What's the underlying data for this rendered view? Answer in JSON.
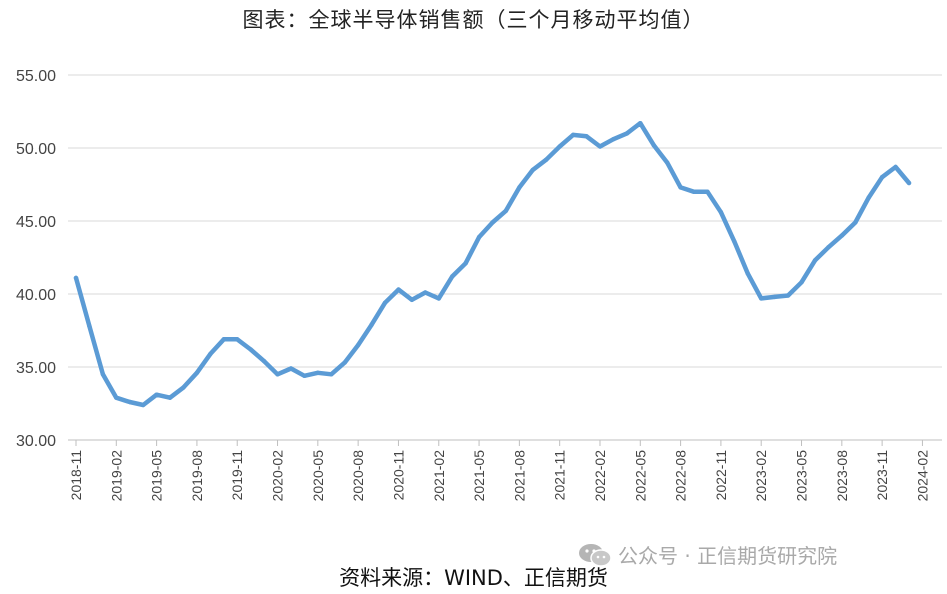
{
  "chart_data": {
    "type": "line",
    "title": "图表：全球半导体销售额（三个月移动平均值）",
    "xlabel": "",
    "ylabel": "",
    "ylim": [
      30,
      55
    ],
    "yticks": [
      "30.00",
      "35.00",
      "40.00",
      "45.00",
      "50.00",
      "55.00"
    ],
    "grid": true,
    "x_tick_labels": [
      "2018-11",
      "2019-02",
      "2019-05",
      "2019-08",
      "2019-11",
      "2020-02",
      "2020-05",
      "2020-08",
      "2020-11",
      "2021-02",
      "2021-05",
      "2021-08",
      "2021-11",
      "2022-02",
      "2022-05",
      "2022-08",
      "2022-11",
      "2023-02",
      "2023-05",
      "2023-08",
      "2023-11",
      "2024-02"
    ],
    "color": "#5b9bd5",
    "series": [
      {
        "x": [
          "2018-11",
          "2018-12",
          "2019-01",
          "2019-02",
          "2019-03",
          "2019-04",
          "2019-05",
          "2019-06",
          "2019-07",
          "2019-08",
          "2019-09",
          "2019-10",
          "2019-11",
          "2019-12",
          "2020-01",
          "2020-02",
          "2020-03",
          "2020-04",
          "2020-05",
          "2020-06",
          "2020-07",
          "2020-08",
          "2020-09",
          "2020-10",
          "2020-11",
          "2020-12",
          "2021-01",
          "2021-02",
          "2021-03",
          "2021-04",
          "2021-05",
          "2021-06",
          "2021-07",
          "2021-08",
          "2021-09",
          "2021-10",
          "2021-11",
          "2021-12",
          "2022-01",
          "2022-02",
          "2022-03",
          "2022-04",
          "2022-05",
          "2022-06",
          "2022-07",
          "2022-08",
          "2022-09",
          "2022-10",
          "2022-11",
          "2022-12",
          "2023-01",
          "2023-02",
          "2023-03",
          "2023-04",
          "2023-05",
          "2023-06",
          "2023-07",
          "2023-08",
          "2023-09",
          "2023-10",
          "2023-11",
          "2023-12",
          "2024-01"
        ],
        "values": [
          41.1,
          37.8,
          34.5,
          32.9,
          32.6,
          32.4,
          33.1,
          32.9,
          33.6,
          34.6,
          35.9,
          36.9,
          36.9,
          36.2,
          35.4,
          34.5,
          34.9,
          34.4,
          34.6,
          34.5,
          35.3,
          36.5,
          37.9,
          39.4,
          40.3,
          39.6,
          40.1,
          39.7,
          41.2,
          42.1,
          43.9,
          44.9,
          45.7,
          47.3,
          48.5,
          49.2,
          50.1,
          50.9,
          50.8,
          50.1,
          50.6,
          51.0,
          51.7,
          50.2,
          49.0,
          47.3,
          47.0,
          47.0,
          45.6,
          43.6,
          41.4,
          39.7,
          39.8,
          39.9,
          40.8,
          42.3,
          43.2,
          44.0,
          44.9,
          46.6,
          48.0,
          48.7,
          47.6
        ]
      }
    ],
    "source": "资料来源：WIND、正信期货"
  },
  "watermark": {
    "icon": "wechat-icon",
    "text": "公众号 · 正信期货研究院"
  }
}
